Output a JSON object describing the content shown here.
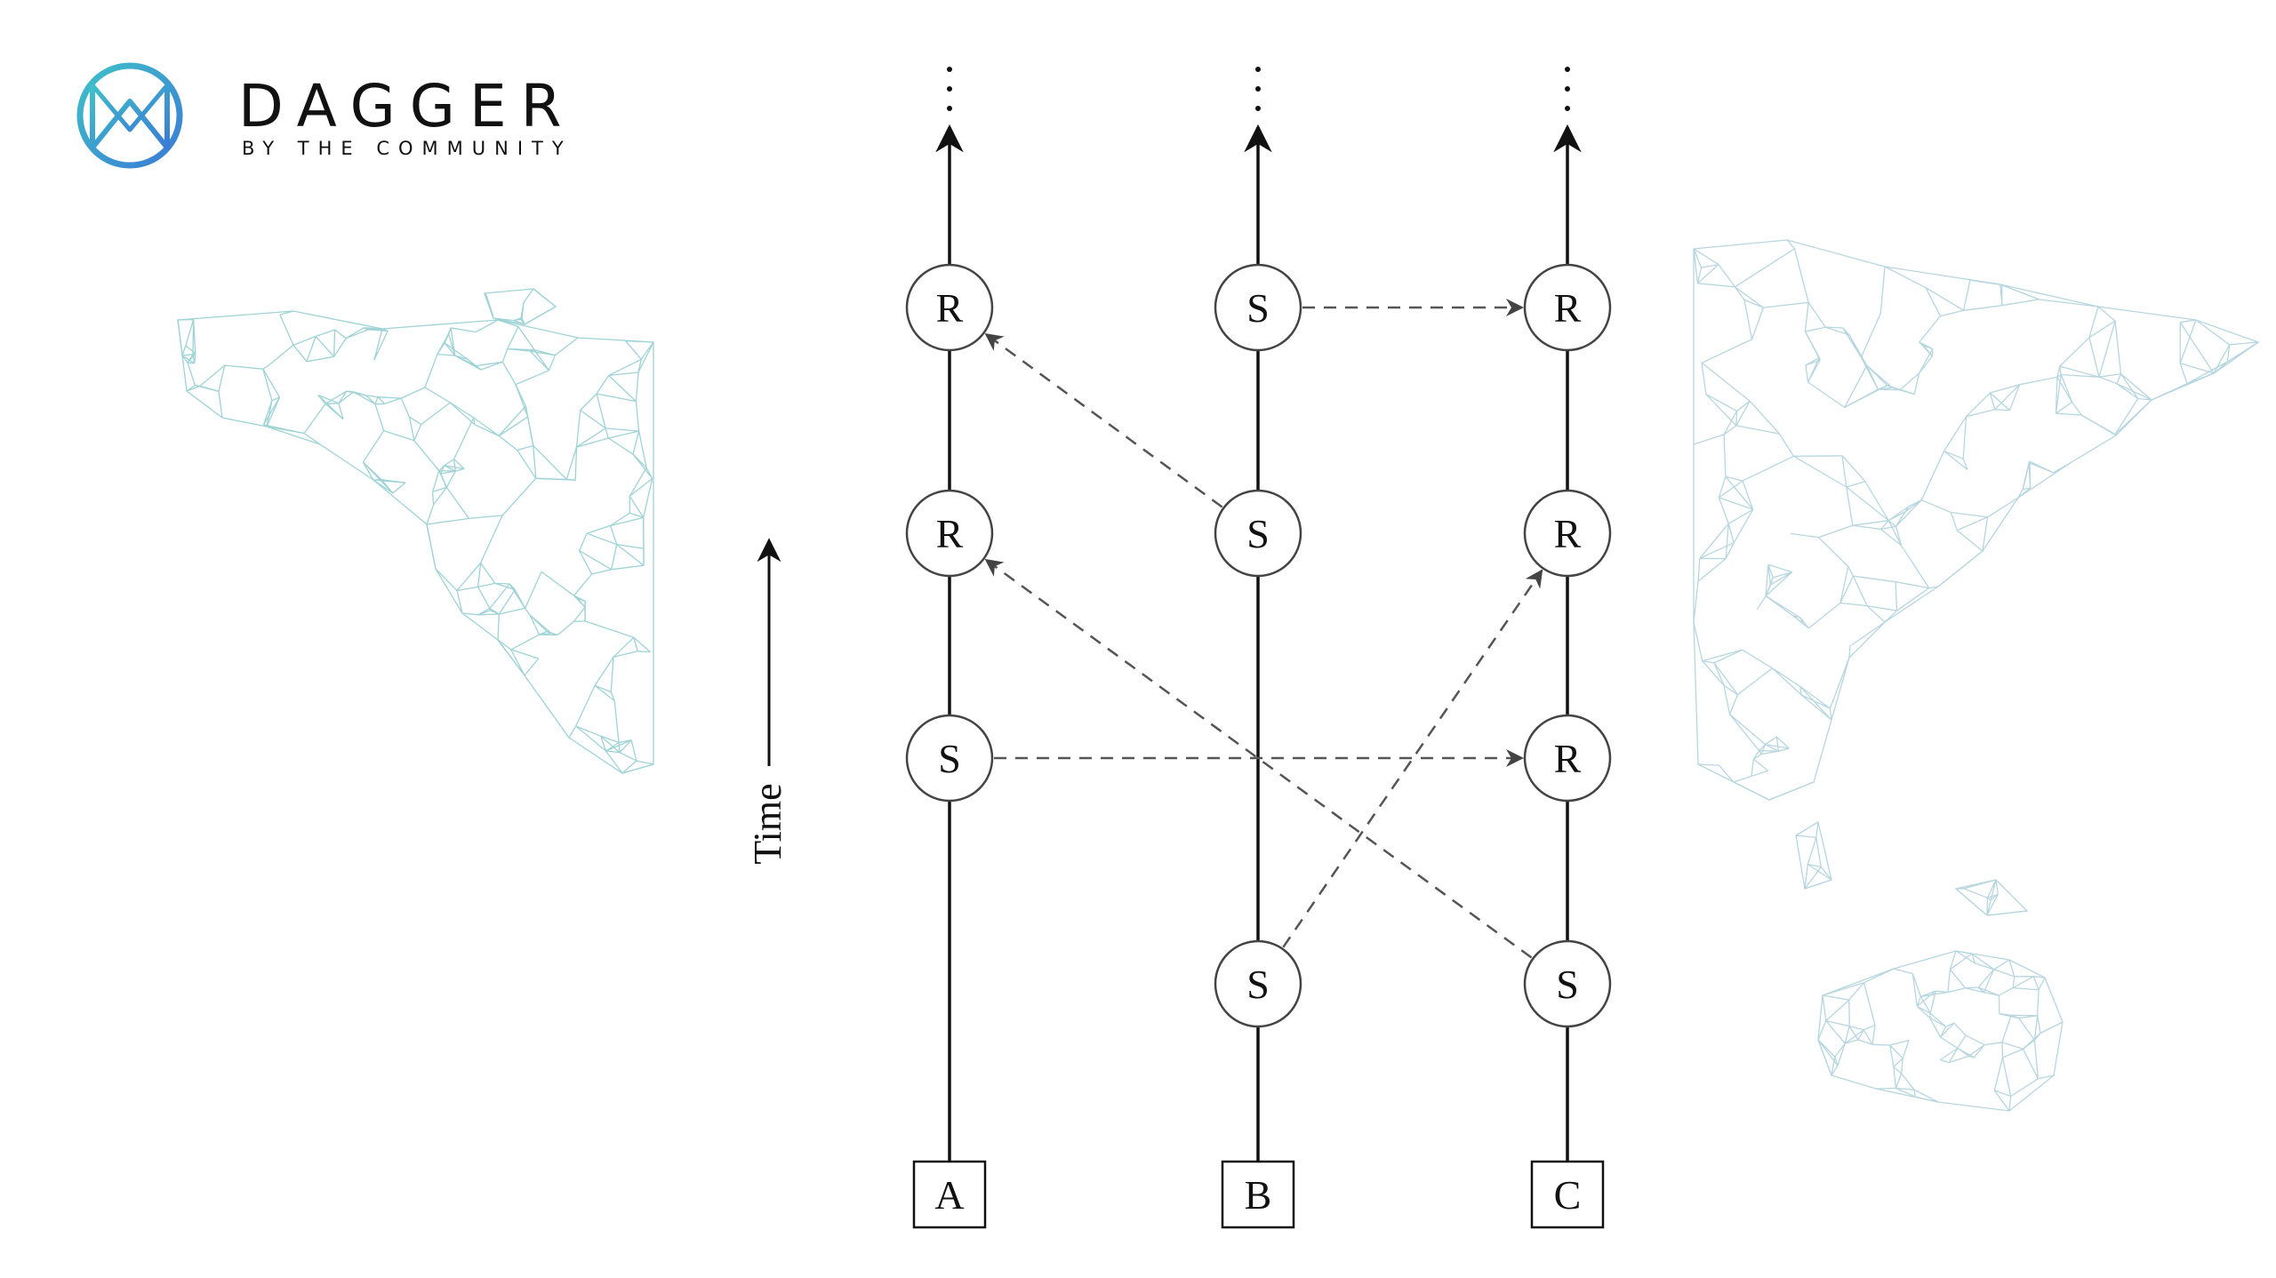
{
  "brand": {
    "name": "DAGGER",
    "tagline": "BY THE COMMUNITY",
    "logo_icon": "dagger-m-logo-icon",
    "colors": {
      "logo_gradient_start": "#3fc1c9",
      "logo_gradient_end": "#3a7bd5",
      "wordmark": "#111111"
    }
  },
  "background": {
    "left_map_icon": "world-map-mesh-americas-icon",
    "right_map_icon": "world-map-mesh-eurasia-icon",
    "mesh_color": "#9fd3d6"
  },
  "diagram": {
    "time_axis_label": "Time",
    "continuation_marker": "⋮",
    "processes": [
      {
        "id": "A",
        "label": "A"
      },
      {
        "id": "B",
        "label": "B"
      },
      {
        "id": "C",
        "label": "C"
      }
    ],
    "events": [
      {
        "id": "a1",
        "process": "A",
        "level": 1,
        "label": "S"
      },
      {
        "id": "a2",
        "process": "A",
        "level": 2,
        "label": "R"
      },
      {
        "id": "a3",
        "process": "A",
        "level": 3,
        "label": "R"
      },
      {
        "id": "b0",
        "process": "B",
        "level": 0,
        "label": "S"
      },
      {
        "id": "b2",
        "process": "B",
        "level": 2,
        "label": "S"
      },
      {
        "id": "b3",
        "process": "B",
        "level": 3,
        "label": "S"
      },
      {
        "id": "c0",
        "process": "C",
        "level": 0,
        "label": "S"
      },
      {
        "id": "c1",
        "process": "C",
        "level": 1,
        "label": "R"
      },
      {
        "id": "c2",
        "process": "C",
        "level": 2,
        "label": "R"
      },
      {
        "id": "c3",
        "process": "C",
        "level": 3,
        "label": "R"
      }
    ],
    "messages": [
      {
        "from": "b3",
        "to": "c3"
      },
      {
        "from": "b2",
        "to": "a3"
      },
      {
        "from": "c0",
        "to": "a2"
      },
      {
        "from": "a1",
        "to": "c1"
      },
      {
        "from": "b0",
        "to": "c2"
      }
    ]
  }
}
